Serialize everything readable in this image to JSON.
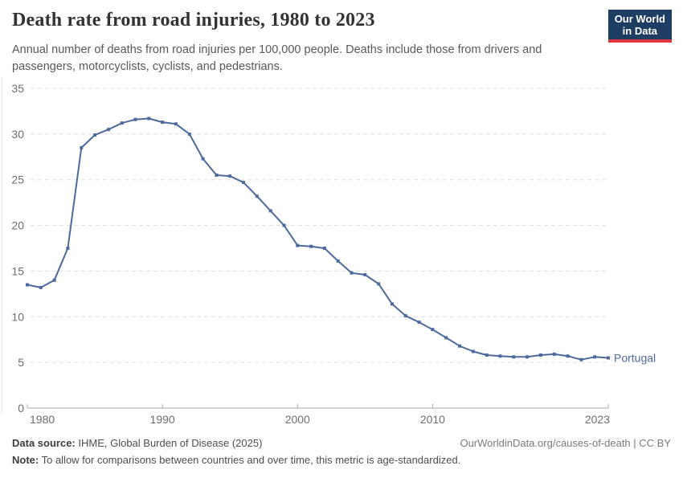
{
  "header": {
    "title": "Death rate from road injuries, 1980 to 2023",
    "subtitle": "Annual number of deaths from road injuries per 100,000 people. Deaths include those from drivers and passengers, motorcyclists, cyclists, and pedestrians.",
    "logo": {
      "line1": "Our World",
      "line2": "in Data",
      "bg_color": "#1d3d63",
      "accent_color": "#e0363f"
    }
  },
  "chart_data": {
    "type": "line",
    "title": "Death rate from road injuries, 1980 to 2023",
    "xlabel": "",
    "ylabel": "",
    "ylim": [
      0,
      35
    ],
    "yticks": [
      0,
      5,
      10,
      15,
      20,
      25,
      30,
      35
    ],
    "xticks": [
      1980,
      1990,
      2000,
      2010,
      2023
    ],
    "grid": "horizontal-dashed",
    "legend_position": "end-of-line-label",
    "x": [
      1980,
      1981,
      1982,
      1983,
      1984,
      1985,
      1986,
      1987,
      1988,
      1989,
      1990,
      1991,
      1992,
      1993,
      1994,
      1995,
      1996,
      1997,
      1998,
      1999,
      2000,
      2001,
      2002,
      2003,
      2004,
      2005,
      2006,
      2007,
      2008,
      2009,
      2010,
      2011,
      2012,
      2013,
      2014,
      2015,
      2016,
      2017,
      2018,
      2019,
      2020,
      2021,
      2022,
      2023
    ],
    "series": [
      {
        "name": "Portugal",
        "color": "#4C6A9C",
        "values": [
          13.5,
          13.2,
          14.0,
          17.5,
          28.5,
          29.9,
          30.5,
          31.2,
          31.6,
          31.7,
          31.3,
          31.1,
          30.0,
          27.3,
          25.5,
          25.4,
          24.7,
          23.2,
          21.6,
          20.0,
          17.8,
          17.7,
          17.5,
          16.1,
          14.8,
          14.6,
          13.6,
          11.4,
          10.1,
          9.4,
          8.6,
          7.7,
          6.8,
          6.2,
          5.8,
          5.7,
          5.6,
          5.6,
          5.8,
          5.9,
          5.7,
          5.3,
          5.6,
          5.5
        ]
      }
    ],
    "colors": {
      "gridline": "#dedede",
      "axis": "#a8a8a8",
      "tick_label": "#6e6e6e"
    }
  },
  "footer": {
    "source_label": "Data source:",
    "source_text": " IHME, Global Burden of Disease (2025)",
    "note_label": "Note:",
    "note_text": " To allow for comparisons between countries and over time, this metric is age-standardized.",
    "link_text": "OurWorldinData.org/causes-of-death | CC BY"
  }
}
